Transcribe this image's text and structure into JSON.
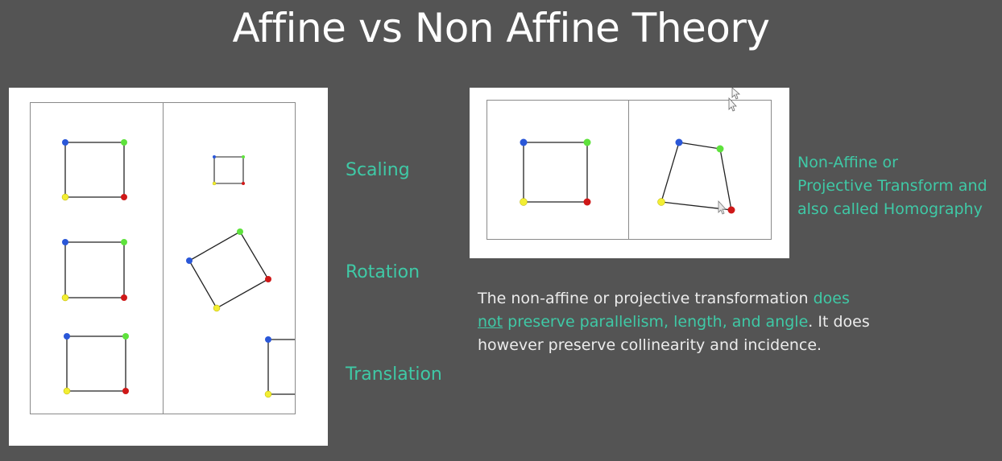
{
  "title": "Affine vs Non Affine Theory",
  "labels": {
    "scaling": "Scaling",
    "rotation": "Rotation",
    "translation": "Translation"
  },
  "non_affine_label": {
    "line1": "Non-Affine or",
    "line2": "Projective Transform and",
    "line3": "also called Homography"
  },
  "description": {
    "p1": "The non-affine or projective transformation ",
    "p2": "does",
    "p3": "not",
    "p4": " preserve parallelism, length, and angle",
    "p5": ". It does however preserve collinearity and incidence."
  },
  "colors": {
    "background": "#545454",
    "title": "#ffffff",
    "accent": "#3fc9a6",
    "body_text": "#ececec",
    "corner_blue": "#2a57d8",
    "corner_green": "#5ee23c",
    "corner_yellow": "#f2ee33",
    "corner_red": "#cf1818"
  }
}
